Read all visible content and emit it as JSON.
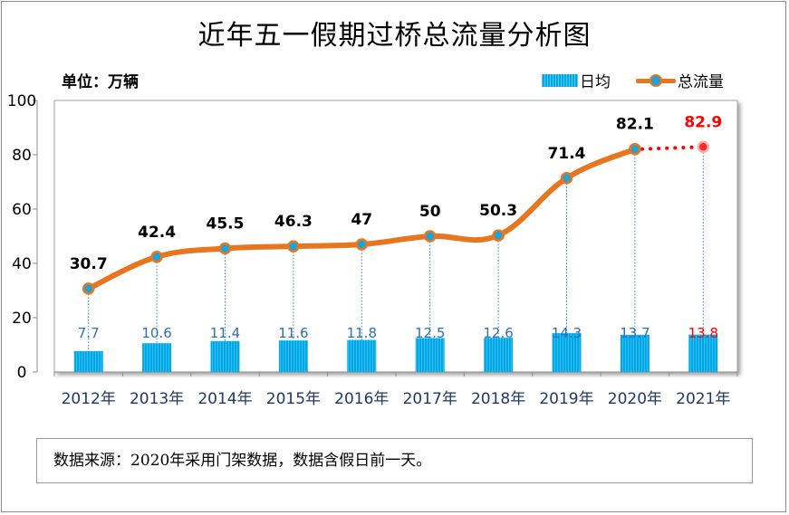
{
  "title": "近年五一假期过桥总流量分析图",
  "unit_label": "单位：万辆",
  "legend": {
    "bar_label": "日均",
    "line_label": "总流量"
  },
  "note": "数据来源：2020年采用门架数据，数据含假日前一天。",
  "colors": {
    "bar": "#00a8e8",
    "line": "#e8761e",
    "marker_fill": "#1ba3dd",
    "highlight_marker": "#ff2a2a",
    "bar_label": "#2e6fb0",
    "total_label": "#000000",
    "highlight_label": "#ff0000",
    "dotted_line": "#ff0000",
    "drop_line": "#2e82b8"
  },
  "chart_data": {
    "type": "bar",
    "categories": [
      "2012年",
      "2013年",
      "2014年",
      "2015年",
      "2016年",
      "2017年",
      "2018年",
      "2019年",
      "2020年",
      "2021年"
    ],
    "series": [
      {
        "name": "日均",
        "type": "bar",
        "values": [
          7.7,
          10.6,
          11.4,
          11.6,
          11.8,
          12.5,
          12.6,
          14.3,
          13.7,
          13.8
        ]
      },
      {
        "name": "总流量",
        "type": "line",
        "values": [
          30.7,
          42.4,
          45.5,
          46.3,
          47,
          50,
          50.3,
          71.4,
          82.1,
          82.9
        ]
      }
    ],
    "y_ticks": [
      0,
      20,
      40,
      60,
      80,
      100
    ],
    "ylim": [
      0,
      100
    ],
    "highlight_category": "2021年",
    "grid": false,
    "legend_position": "top-right"
  }
}
